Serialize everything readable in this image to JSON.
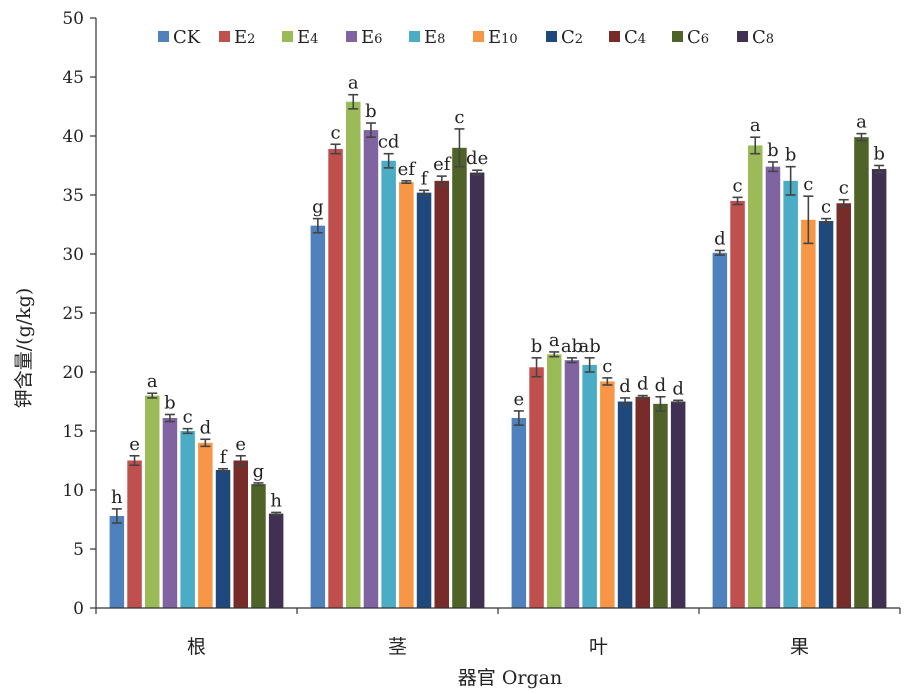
{
  "chart_data": {
    "type": "bar",
    "xlabel": "器官 Organ",
    "ylabel": "钾含量/(g/kg)",
    "ylim": [
      0,
      50
    ],
    "yticks": [
      0,
      5,
      10,
      15,
      20,
      25,
      30,
      35,
      40,
      45,
      50
    ],
    "grid": false,
    "legend_position": "top",
    "categories": [
      "根",
      "茎",
      "叶",
      "果"
    ],
    "series": [
      {
        "name": "CK",
        "color": "#4f81bd",
        "values": [
          7.8,
          32.4,
          16.1,
          30.1
        ],
        "errors": [
          0.6,
          0.6,
          0.6,
          0.2
        ],
        "labels": [
          "h",
          "g",
          "e",
          "d"
        ]
      },
      {
        "name": "E2",
        "color": "#c0504d",
        "values": [
          12.5,
          38.9,
          20.4,
          34.5
        ],
        "errors": [
          0.4,
          0.4,
          0.8,
          0.3
        ],
        "labels": [
          "e",
          "c",
          "b",
          "c"
        ]
      },
      {
        "name": "E4",
        "color": "#9bbb59",
        "values": [
          18.0,
          42.9,
          21.5,
          39.2
        ],
        "errors": [
          0.2,
          0.6,
          0.2,
          0.7
        ],
        "labels": [
          "a",
          "a",
          "a",
          "a"
        ]
      },
      {
        "name": "E6",
        "color": "#8064a2",
        "values": [
          16.1,
          40.5,
          21.0,
          37.4
        ],
        "errors": [
          0.3,
          0.6,
          0.2,
          0.4
        ],
        "labels": [
          "b",
          "b",
          "ab",
          "b"
        ]
      },
      {
        "name": "E8",
        "color": "#4bacc6",
        "values": [
          15.0,
          37.9,
          20.6,
          36.2
        ],
        "errors": [
          0.2,
          0.6,
          0.6,
          1.2
        ],
        "labels": [
          "c",
          "cd",
          "ab",
          "b"
        ]
      },
      {
        "name": "E10",
        "color": "#f79646",
        "values": [
          14.0,
          36.1,
          19.2,
          32.9
        ],
        "errors": [
          0.3,
          0.1,
          0.3,
          2.0
        ],
        "labels": [
          "d",
          "ef",
          "c",
          "c"
        ]
      },
      {
        "name": "C2",
        "color": "#1f497d",
        "values": [
          11.7,
          35.2,
          17.5,
          32.8
        ],
        "errors": [
          0.1,
          0.2,
          0.3,
          0.2
        ],
        "labels": [
          "f",
          "f",
          "d",
          "c"
        ]
      },
      {
        "name": "C4",
        "color": "#772c2a",
        "values": [
          12.5,
          36.2,
          17.9,
          34.3
        ],
        "errors": [
          0.4,
          0.4,
          0.1,
          0.3
        ],
        "labels": [
          "e",
          "ef",
          "d",
          "c"
        ]
      },
      {
        "name": "C6",
        "color": "#4f6228",
        "values": [
          10.5,
          39.0,
          17.3,
          39.9
        ],
        "errors": [
          0.1,
          1.6,
          0.6,
          0.3
        ],
        "labels": [
          "g",
          "c",
          "d",
          "a"
        ]
      },
      {
        "name": "C8",
        "color": "#403152",
        "values": [
          8.0,
          36.9,
          17.5,
          37.2
        ],
        "errors": [
          0.1,
          0.2,
          0.1,
          0.3
        ],
        "labels": [
          "h",
          "de",
          "d",
          "b"
        ]
      }
    ]
  }
}
